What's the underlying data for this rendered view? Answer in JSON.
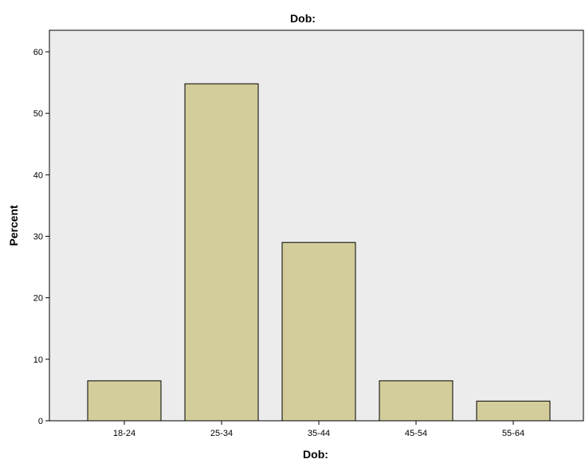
{
  "chart_data": {
    "type": "bar",
    "title": "Dob:",
    "xlabel": "Dob:",
    "ylabel": "Percent",
    "categories": [
      "18-24",
      "25-34",
      "35-44",
      "45-54",
      "55-64"
    ],
    "values": [
      6.5,
      54.8,
      29.0,
      6.5,
      3.2
    ],
    "ylim": [
      0,
      63.5
    ],
    "yticks": [
      0,
      10,
      20,
      30,
      40,
      50,
      60
    ],
    "grid": false,
    "legend": "none",
    "colors": {
      "bar_fill": "#d3cd9b",
      "bar_stroke": "#000000",
      "plot_bg": "#ececec"
    }
  }
}
